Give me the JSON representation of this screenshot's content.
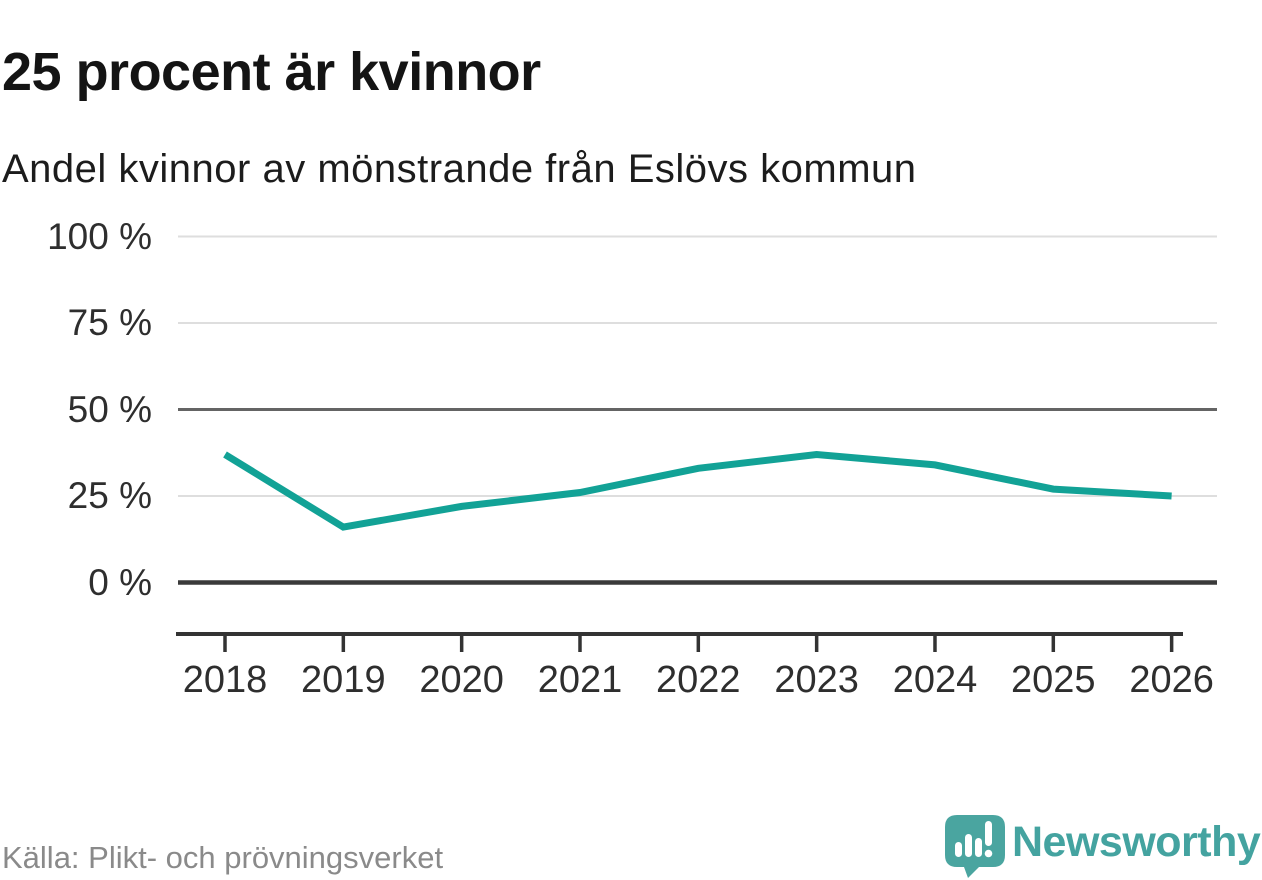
{
  "header": {
    "title": "25 procent är kvinnor",
    "subtitle": "Andel kvinnor av mönstrande från Eslövs kommun"
  },
  "chart_data": {
    "type": "line",
    "title": "25 procent är kvinnor",
    "subtitle": "Andel kvinnor av mönstrande från Eslövs kommun",
    "categories": [
      "2018",
      "2019",
      "2020",
      "2021",
      "2022",
      "2023",
      "2024",
      "2025",
      "2026"
    ],
    "series": [
      {
        "name": "Andel kvinnor av mönstrande",
        "values": [
          37,
          16,
          22,
          26,
          33,
          37,
          34,
          27,
          25
        ]
      }
    ],
    "unit": "%",
    "xlabel": "",
    "ylabel": "",
    "ylim": [
      0,
      100
    ],
    "yticks": [
      0,
      25,
      50,
      75,
      100
    ],
    "ytick_labels_top_down": [
      "100 %",
      "75 %",
      "50 %",
      "25 %",
      "0 %"
    ],
    "grid": "horizontal",
    "legend": "none",
    "line_color": "#12a296",
    "emphasized_gridlines": [
      0,
      50
    ]
  },
  "footer": {
    "source": "Källa: Plikt- och prövningsverket",
    "brand_name": "Newsworthy"
  },
  "colors": {
    "line": "#12a296",
    "logo_teal": "#4aa5a0",
    "brand_text": "#44a3a0",
    "grid_light": "#dedede",
    "grid_mid": "#646464",
    "grid_zero": "#3a3a3a",
    "axis": "#333333",
    "text_dark": "#141414",
    "text_gray": "#8a8a8a"
  }
}
